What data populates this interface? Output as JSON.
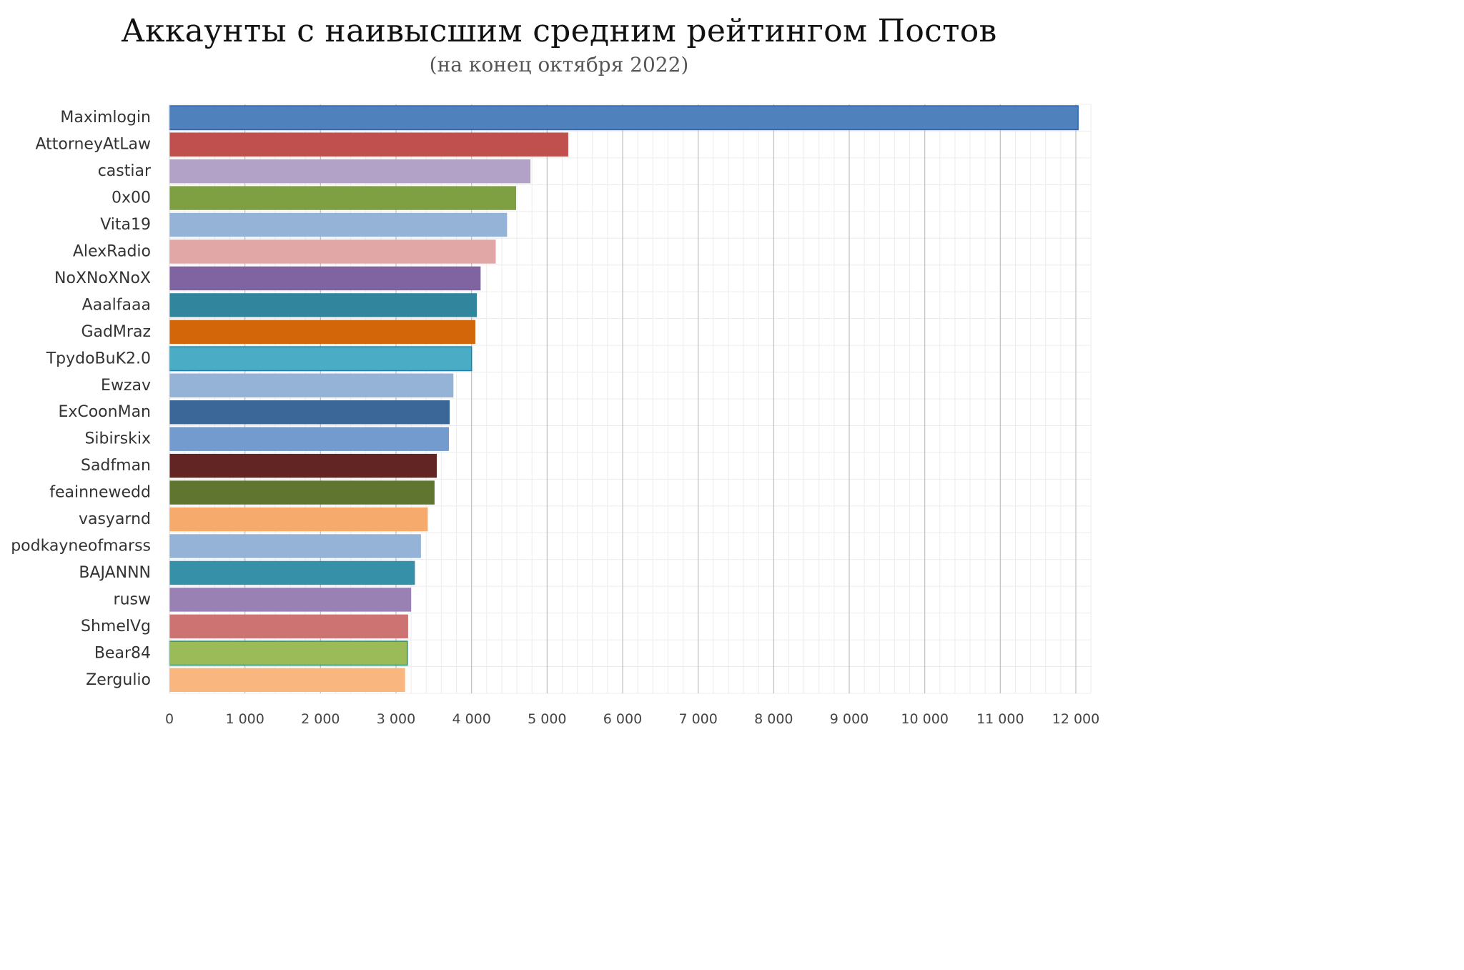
{
  "chart_data": {
    "type": "bar",
    "orientation": "horizontal",
    "title": "Аккаунты с наивысшим средним рейтингом Постов",
    "subtitle": "(на конец октября 2022)",
    "xlabel": "",
    "ylabel": "",
    "xlim": [
      0,
      12200
    ],
    "x_ticks": [
      0,
      1000,
      2000,
      3000,
      4000,
      5000,
      6000,
      7000,
      8000,
      9000,
      10000,
      11000,
      12000
    ],
    "x_tick_labels": [
      "0",
      "1 000",
      "2 000",
      "3 000",
      "4 000",
      "5 000",
      "6 000",
      "7 000",
      "8 000",
      "9 000",
      "10 000",
      "11 000",
      "12 000"
    ],
    "grid": true,
    "legend": "none",
    "categories": [
      "Maximlogin",
      "AttorneyAtLaw",
      "castiar",
      "0x00",
      "Vita19",
      "AlexRadio",
      "NoXNoXNoX",
      "Aaalfaaa",
      "GadMraz",
      "TpydoBuK2.0",
      "Ewzav",
      "ExCoonMan",
      "Sibirskix",
      "Sadfman",
      "feainnewedd",
      "vasyarnd",
      "podkayneofmarss",
      "BAJANNN",
      "rusw",
      "ShmelVg",
      "Bear84",
      "Zergulio"
    ],
    "values": [
      12030,
      5280,
      4780,
      4590,
      4470,
      4320,
      4120,
      4070,
      4050,
      4000,
      3760,
      3710,
      3700,
      3540,
      3510,
      3420,
      3330,
      3250,
      3200,
      3160,
      3150,
      3120
    ],
    "colors": [
      "#4f81bd",
      "#c0504d",
      "#b3a2c7",
      "#7f9f43",
      "#95b3d7",
      "#e0a7a6",
      "#8064a2",
      "#31859c",
      "#d4660a",
      "#4bacc6",
      "#95b3d7",
      "#3b6698",
      "#739bce",
      "#632523",
      "#5f7530",
      "#f6ab6c",
      "#95b3d7",
      "#3691a8",
      "#9982b3",
      "#cd7371",
      "#9bbb59",
      "#f9b67f"
    ]
  }
}
